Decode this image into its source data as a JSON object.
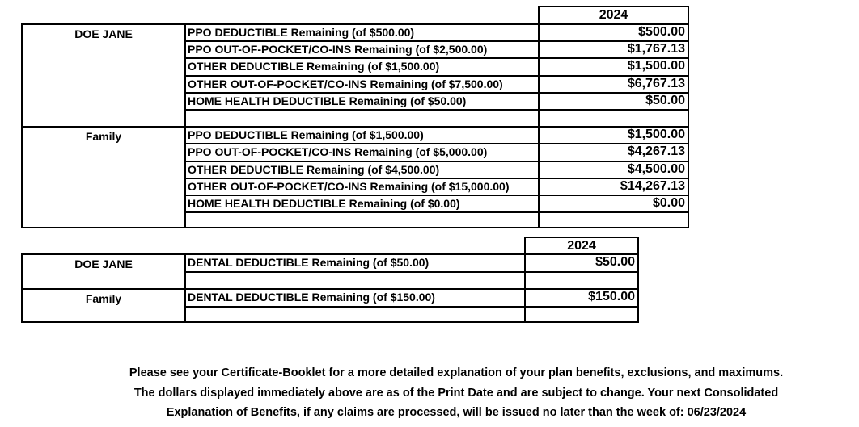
{
  "medical_table": {
    "year": "2024",
    "sections": [
      {
        "member": "DOE JANE",
        "rows": [
          {
            "desc": "PPO DEDUCTIBLE Remaining (of $500.00)",
            "value": "$500.00"
          },
          {
            "desc": "PPO OUT-OF-POCKET/CO-INS Remaining (of $2,500.00)",
            "value": "$1,767.13"
          },
          {
            "desc": "OTHER DEDUCTIBLE Remaining (of $1,500.00)",
            "value": "$1,500.00"
          },
          {
            "desc": "OTHER OUT-OF-POCKET/CO-INS Remaining (of $7,500.00)",
            "value": "$6,767.13"
          },
          {
            "desc": "HOME HEALTH DEDUCTIBLE Remaining (of $50.00)",
            "value": "$50.00"
          },
          {
            "desc": "",
            "value": ""
          }
        ]
      },
      {
        "member": "Family",
        "rows": [
          {
            "desc": "PPO DEDUCTIBLE Remaining (of $1,500.00)",
            "value": "$1,500.00"
          },
          {
            "desc": "PPO OUT-OF-POCKET/CO-INS Remaining (of $5,000.00)",
            "value": "$4,267.13"
          },
          {
            "desc": "OTHER DEDUCTIBLE Remaining (of $4,500.00)",
            "value": "$4,500.00"
          },
          {
            "desc": "OTHER OUT-OF-POCKET/CO-INS Remaining (of $15,000.00)",
            "value": "$14,267.13"
          },
          {
            "desc": "HOME HEALTH DEDUCTIBLE Remaining (of $0.00)",
            "value": "$0.00"
          },
          {
            "desc": "",
            "value": ""
          }
        ]
      }
    ]
  },
  "dental_table": {
    "year": "2024",
    "sections": [
      {
        "member": "DOE JANE",
        "rows": [
          {
            "desc": "DENTAL DEDUCTIBLE Remaining (of $50.00)",
            "value": "$50.00"
          },
          {
            "desc": "",
            "value": ""
          }
        ]
      },
      {
        "member": "Family",
        "rows": [
          {
            "desc": "DENTAL DEDUCTIBLE Remaining (of $150.00)",
            "value": "$150.00"
          },
          {
            "desc": "",
            "value": ""
          }
        ]
      }
    ]
  },
  "footer": {
    "lines": [
      "Please see your Certificate-Booklet for a more detailed explanation of your plan benefits, exclusions, and maximums.",
      "The dollars displayed immediately above are as of the Print Date and are subject to change. Your next Consolidated",
      "Explanation of Benefits, if any claims are processed, will be issued no later than the week of: 06/23/2024"
    ]
  },
  "colors": {
    "background": "#ffffff",
    "text": "#000000",
    "border": "#000000"
  }
}
